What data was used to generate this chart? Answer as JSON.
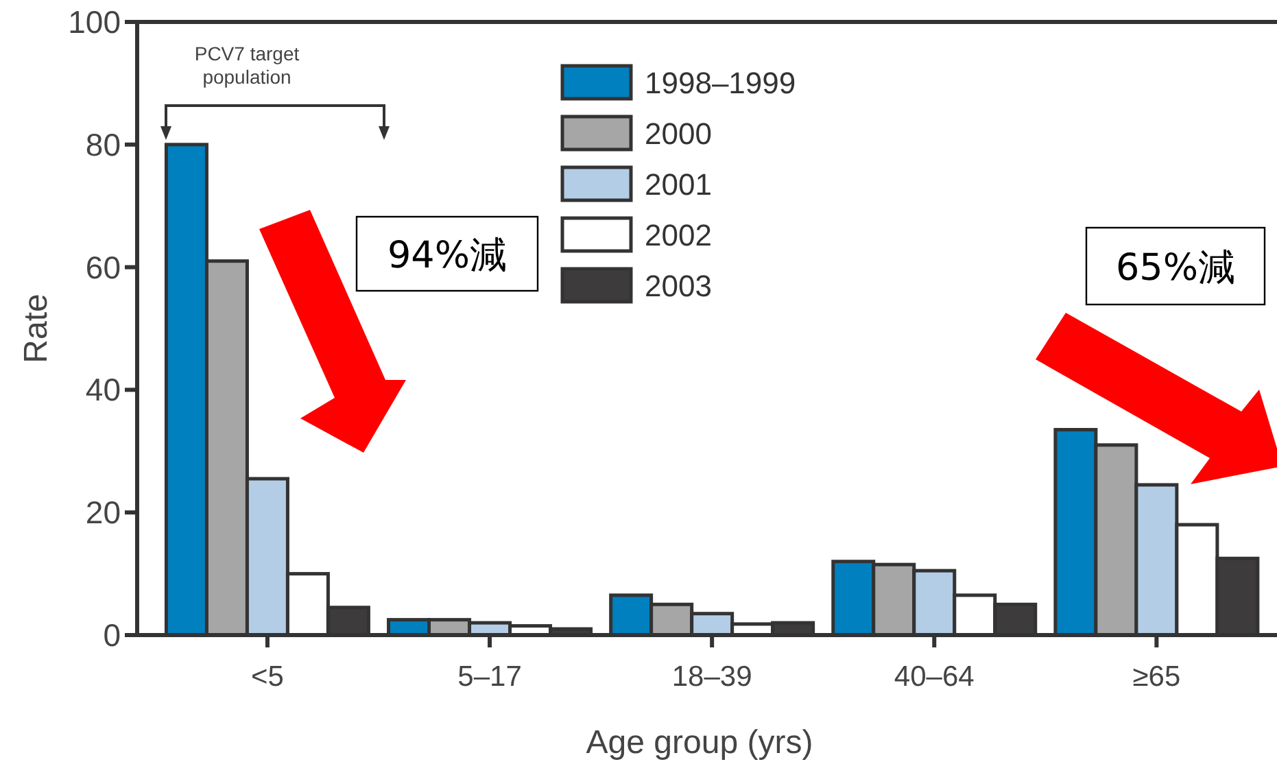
{
  "chart_data": {
    "type": "bar",
    "xlabel": "Age group (yrs)",
    "ylabel": "Rate",
    "categories": [
      "<5",
      "5–17",
      "18–39",
      "40–64",
      "≥65"
    ],
    "series": [
      {
        "name": "1998–1999",
        "color": "#0080bf",
        "values": [
          80,
          2.5,
          6.5,
          12,
          33.5
        ]
      },
      {
        "name": "2000",
        "color": "#a6a6a6",
        "values": [
          61,
          2.5,
          5,
          11.5,
          31
        ]
      },
      {
        "name": "2001",
        "color": "#b3cde6",
        "values": [
          25.5,
          2,
          3.5,
          10.5,
          24.5
        ]
      },
      {
        "name": "2002",
        "color": "#ffffff",
        "values": [
          10,
          1.5,
          1.8,
          6.5,
          18
        ]
      },
      {
        "name": "2003",
        "color": "#3d3b3c",
        "values": [
          4.5,
          1,
          2,
          5,
          12.5
        ]
      }
    ],
    "ylim": [
      0,
      100
    ],
    "yticks": [
      0,
      20,
      40,
      60,
      80,
      100
    ],
    "grid": false,
    "legend": "top",
    "annotations": [
      "PCV7 target population",
      "94%減",
      "65%減"
    ]
  }
}
